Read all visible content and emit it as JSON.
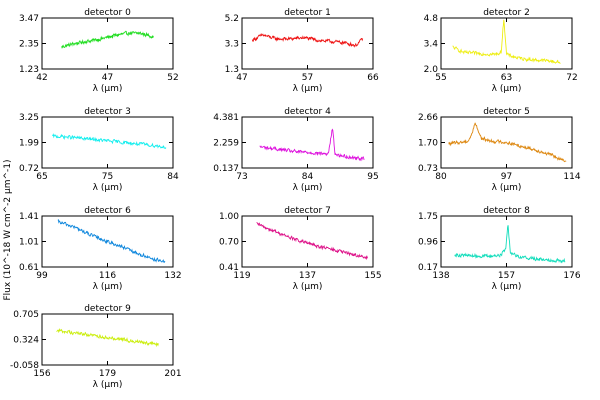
{
  "figure": {
    "ylabel": "Flux (10^-18 W cm^-2 μm^-1)",
    "xlabel": "λ (μm)"
  },
  "chart_data": [
    {
      "type": "line",
      "title": "detector 0",
      "xlabel": "λ (μm)",
      "color": "#22dd22",
      "xlim": [
        42,
        52
      ],
      "ylim": [
        1.23,
        3.47
      ],
      "xticks": [
        "42",
        "47",
        "52"
      ],
      "yticks": [
        "1.23",
        "2.35",
        "3.47"
      ],
      "series": [
        {
          "x": [
            43.5,
            44.5,
            45.5,
            46.5,
            47.5,
            48.5,
            49.5,
            50.5
          ],
          "y": [
            2.2,
            2.35,
            2.45,
            2.55,
            2.7,
            2.8,
            2.8,
            2.65
          ]
        }
      ]
    },
    {
      "type": "line",
      "title": "detector 1",
      "xlabel": "λ (μm)",
      "color": "#ee1111",
      "xlim": [
        47,
        66
      ],
      "ylim": [
        1.3,
        5.2
      ],
      "xticks": [
        "47",
        "57",
        "66"
      ],
      "yticks": [
        "1.3",
        "3.3",
        "5.2"
      ],
      "series": [
        {
          "x": [
            48.5,
            50,
            52,
            54,
            56,
            58,
            60,
            62,
            63.5,
            64.5
          ],
          "y": [
            3.5,
            3.9,
            3.6,
            3.6,
            3.7,
            3.5,
            3.4,
            3.3,
            3.1,
            3.6
          ]
        }
      ]
    },
    {
      "type": "line",
      "title": "detector 2",
      "xlabel": "λ (μm)",
      "color": "#eeee11",
      "xlim": [
        55,
        72
      ],
      "ylim": [
        2.0,
        4.8
      ],
      "xticks": [
        "55",
        "63",
        "72"
      ],
      "yticks": [
        "2.0",
        "3.4",
        "4.8"
      ],
      "series": [
        {
          "x": [
            56.5,
            58,
            60,
            62,
            62.8,
            63.15,
            63.5,
            65,
            67,
            69,
            70.5
          ],
          "y": [
            3.2,
            2.9,
            2.85,
            2.8,
            2.9,
            4.8,
            2.8,
            2.6,
            2.5,
            2.45,
            2.35
          ]
        }
      ]
    },
    {
      "type": "line",
      "title": "detector 3",
      "xlabel": "λ (μm)",
      "color": "#11eeee",
      "xlim": [
        65,
        84
      ],
      "ylim": [
        0.72,
        3.25
      ],
      "xticks": [
        "65",
        "75",
        "84"
      ],
      "yticks": [
        "0.72",
        "1.99",
        "3.25"
      ],
      "series": [
        {
          "x": [
            66.5,
            69,
            72,
            75,
            78,
            81,
            83
          ],
          "y": [
            2.3,
            2.25,
            2.15,
            2.05,
            1.95,
            1.85,
            1.75
          ]
        }
      ]
    },
    {
      "type": "line",
      "title": "detector 4",
      "xlabel": "λ (μm)",
      "color": "#dd11dd",
      "xlim": [
        73,
        95
      ],
      "ylim": [
        0.137,
        4.381
      ],
      "xticks": [
        "73",
        "84",
        "95"
      ],
      "yticks": [
        "0.137",
        "2.259",
        "4.381"
      ],
      "series": [
        {
          "x": [
            76,
            79,
            82,
            85,
            87.5,
            88.2,
            88.6,
            89.2,
            91,
            93.5
          ],
          "y": [
            1.9,
            1.7,
            1.5,
            1.4,
            1.3,
            3.5,
            1.35,
            1.2,
            1.05,
            0.9
          ]
        }
      ]
    },
    {
      "type": "line",
      "title": "detector 5",
      "xlabel": "λ (μm)",
      "color": "#dd8811",
      "xlim": [
        80,
        114
      ],
      "ylim": [
        0.73,
        2.66
      ],
      "xticks": [
        "80",
        "97",
        "114"
      ],
      "yticks": [
        "0.73",
        "1.70",
        "2.66"
      ],
      "series": [
        {
          "x": [
            82,
            85,
            87,
            88,
            88.8,
            90.5,
            93,
            97,
            101,
            105,
            109,
            112.5
          ],
          "y": [
            1.65,
            1.7,
            1.75,
            2.0,
            2.45,
            1.85,
            1.75,
            1.7,
            1.55,
            1.4,
            1.2,
            0.95
          ]
        }
      ]
    },
    {
      "type": "line",
      "title": "detector 6",
      "xlabel": "λ (μm)",
      "color": "#1188dd",
      "xlim": [
        99,
        132
      ],
      "ylim": [
        0.61,
        1.41
      ],
      "xticks": [
        "99",
        "116",
        "132"
      ],
      "yticks": [
        "0.61",
        "1.01",
        "1.41"
      ],
      "series": [
        {
          "x": [
            103,
            107,
            111,
            115,
            119,
            123,
            127,
            130
          ],
          "y": [
            1.32,
            1.24,
            1.12,
            1.02,
            0.93,
            0.82,
            0.74,
            0.68
          ]
        }
      ]
    },
    {
      "type": "line",
      "title": "detector 7",
      "xlabel": "λ (μm)",
      "color": "#dd1188",
      "xlim": [
        119,
        155
      ],
      "ylim": [
        0.41,
        1.0
      ],
      "xticks": [
        "119",
        "137",
        "155"
      ],
      "yticks": [
        "0.41",
        "0.70",
        "1.00"
      ],
      "series": [
        {
          "x": [
            123,
            127,
            131,
            135,
            139,
            143,
            147,
            151,
            153.5
          ],
          "y": [
            0.91,
            0.84,
            0.77,
            0.71,
            0.66,
            0.62,
            0.58,
            0.54,
            0.51
          ]
        }
      ]
    },
    {
      "type": "line",
      "title": "detector 8",
      "xlabel": "λ (μm)",
      "color": "#11ddbb",
      "xlim": [
        138,
        176
      ],
      "ylim": [
        0.17,
        1.75
      ],
      "xticks": [
        "138",
        "157",
        "176"
      ],
      "yticks": [
        "0.17",
        "0.96",
        "1.75"
      ],
      "series": [
        {
          "x": [
            142,
            147,
            152,
            155.5,
            156.8,
            157.4,
            158.1,
            161,
            166,
            171,
            174
          ],
          "y": [
            0.55,
            0.52,
            0.5,
            0.55,
            0.75,
            1.55,
            0.62,
            0.48,
            0.42,
            0.38,
            0.36
          ]
        }
      ]
    },
    {
      "type": "line",
      "title": "detector 9",
      "xlabel": "λ (μm)",
      "color": "#ccee11",
      "xlim": [
        156,
        201
      ],
      "ylim": [
        -0.058,
        0.705
      ],
      "xticks": [
        "156",
        "179",
        "201"
      ],
      "yticks": [
        "-0.058",
        "0.324",
        "0.705"
      ],
      "series": [
        {
          "x": [
            161,
            166,
            171,
            176,
            181,
            186,
            191,
            196
          ],
          "y": [
            0.46,
            0.43,
            0.4,
            0.37,
            0.34,
            0.31,
            0.28,
            0.25
          ]
        }
      ]
    }
  ]
}
